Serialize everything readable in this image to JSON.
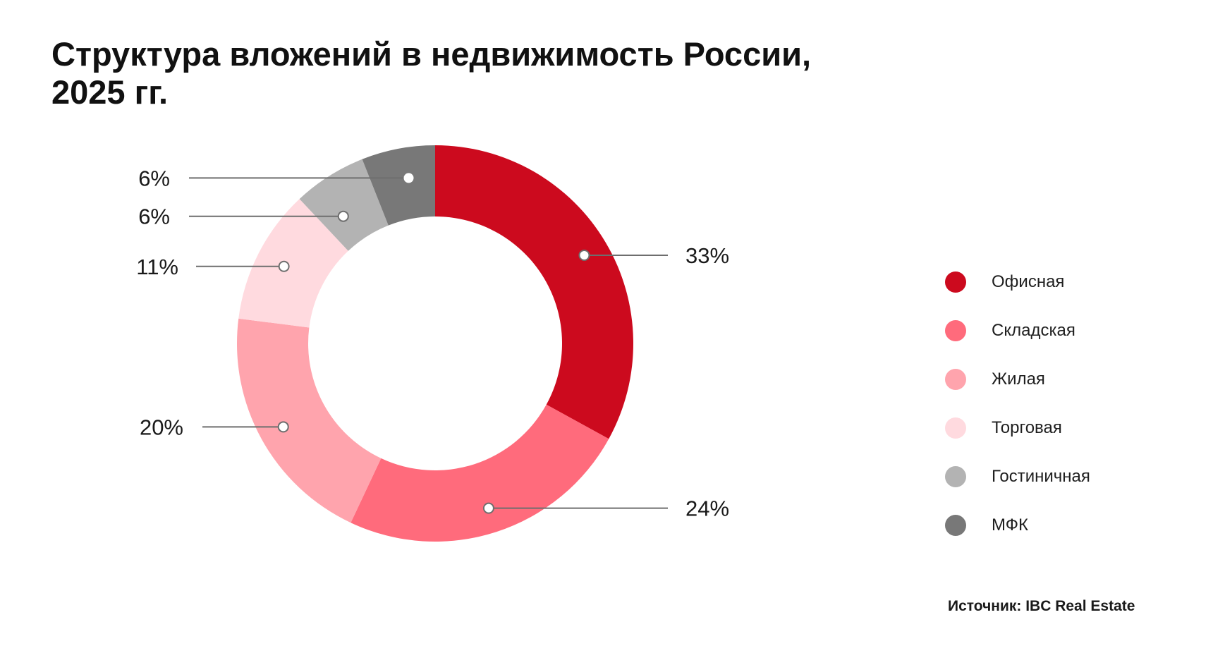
{
  "title": {
    "line1": "Структура вложений в недвижимость России,",
    "line2": "2025 гг."
  },
  "source": "Источник: IBC Real Estate",
  "chart_data": {
    "type": "pie",
    "variant": "donut",
    "title": "Структура вложений в недвижимость России, 2025 гг.",
    "unit": "%",
    "legend_position": "right",
    "slices": [
      {
        "name": "Офисная",
        "value": 33,
        "label": "33%",
        "color": "#cc0a1e"
      },
      {
        "name": "Складская",
        "value": 24,
        "label": "24%",
        "color": "#ff6b7c"
      },
      {
        "name": "Жилая",
        "value": 20,
        "label": "20%",
        "color": "#ffa4ad"
      },
      {
        "name": "Торговая",
        "value": 11,
        "label": "11%",
        "color": "#ffdadf"
      },
      {
        "name": "Гостиничная",
        "value": 6,
        "label": "6%",
        "color": "#b3b3b3"
      },
      {
        "name": "МФК",
        "value": 6,
        "label": "6%",
        "color": "#787878"
      }
    ]
  }
}
